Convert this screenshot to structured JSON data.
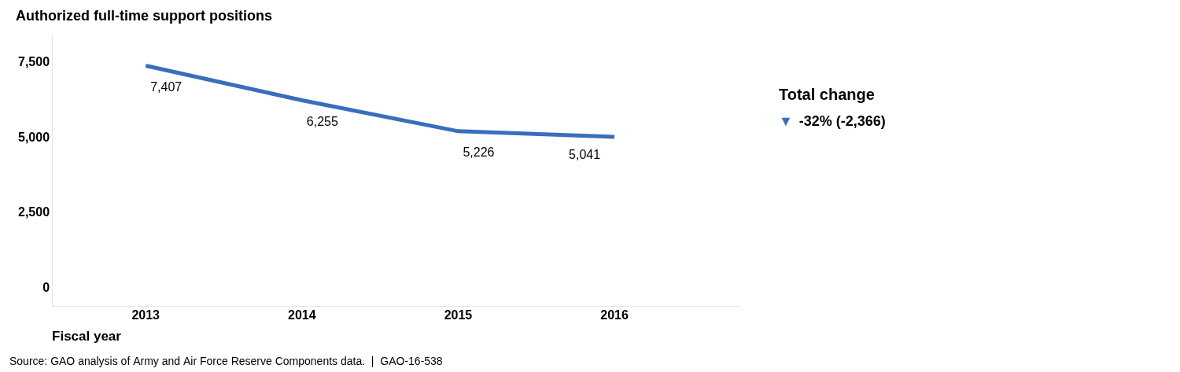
{
  "chart_data": {
    "type": "line",
    "title": "Authorized full-time support positions",
    "xlabel": "Fiscal year",
    "x": [
      2013,
      2014,
      2015,
      2016
    ],
    "values": [
      7407,
      6255,
      5226,
      5041
    ],
    "value_labels": [
      "7,407",
      "6,255",
      "5,226",
      "5,041"
    ],
    "data_labels": true,
    "color": "#3A6EBC",
    "xlim": [
      2012.4,
      2016.8
    ],
    "xticks": [
      2013,
      2014,
      2015,
      2016
    ],
    "ylim": [
      -600,
      8400
    ],
    "yticks": [
      0,
      {
        "value": 2500,
        "label": "2,500"
      },
      {
        "value": 5000,
        "label": "5,000"
      },
      {
        "value": 7500,
        "label": "7,500"
      }
    ],
    "grid": false,
    "legend": "none",
    "annotations": [
      {
        "text": "Total change"
      },
      {
        "text": "▼",
        "color": "#3A6EBC"
      },
      {
        "text": "-32% (-2,366)"
      }
    ],
    "source": "Source: GAO analysis of Army and Air Force Reserve Components data.  |  GAO-16-538"
  }
}
